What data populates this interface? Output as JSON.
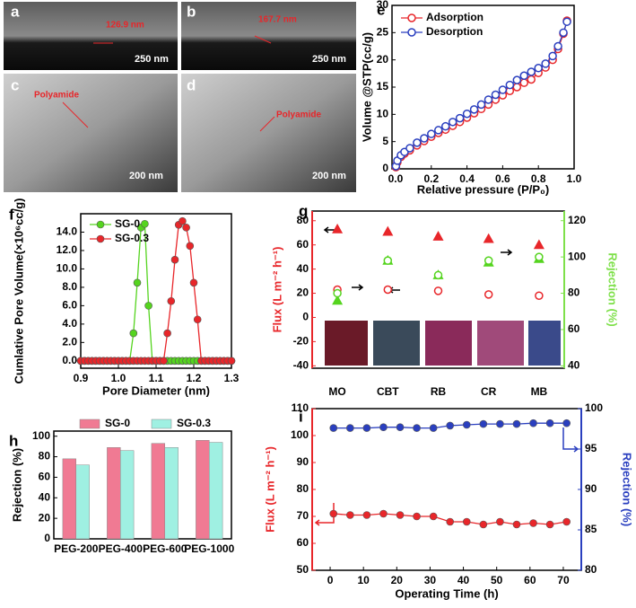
{
  "micrographs": [
    {
      "label": "a",
      "measurement": "126.9 nm",
      "scale_bar": "250 nm"
    },
    {
      "label": "b",
      "measurement": "167.7 nm",
      "scale_bar": "250 nm"
    },
    {
      "label": "c",
      "annotation": "Polyamide",
      "scale_bar": "200 nm"
    },
    {
      "label": "d",
      "annotation": "Polyamide",
      "scale_bar": "200 nm"
    }
  ],
  "chart_data": [
    {
      "type": "line",
      "panel_label": "e",
      "xlabel": "Relative pressure (P/P₀)",
      "ylabel": "Volume @STP(cc/g)",
      "x": [
        0.002,
        0.01,
        0.03,
        0.05,
        0.08,
        0.12,
        0.16,
        0.2,
        0.24,
        0.28,
        0.32,
        0.36,
        0.4,
        0.44,
        0.48,
        0.52,
        0.56,
        0.6,
        0.64,
        0.68,
        0.72,
        0.76,
        0.8,
        0.84,
        0.88,
        0.91,
        0.94,
        0.96
      ],
      "series": [
        {
          "name": "Adsorption",
          "color": "#e8262a",
          "marker": "circle",
          "filled": false,
          "values": [
            0.3,
            1.2,
            2.2,
            2.8,
            3.4,
            4.3,
            5.1,
            5.9,
            6.6,
            7.2,
            7.9,
            8.6,
            9.4,
            10.2,
            11.0,
            11.8,
            12.7,
            13.5,
            14.3,
            15.0,
            15.8,
            16.4,
            17.6,
            18.6,
            20.0,
            22.0,
            24.8,
            27.2
          ]
        },
        {
          "name": "Desorption",
          "color": "#2a3fbf",
          "marker": "circle",
          "filled": false,
          "values": [
            0.5,
            1.5,
            2.5,
            3.1,
            3.8,
            4.8,
            5.6,
            6.4,
            7.1,
            7.8,
            8.6,
            9.3,
            10.1,
            10.9,
            11.8,
            12.7,
            13.6,
            14.5,
            15.4,
            16.3,
            17.1,
            17.8,
            18.5,
            19.3,
            20.7,
            22.5,
            25.0,
            27.0
          ]
        }
      ],
      "xlim": [
        -0.02,
        1.0
      ],
      "ylim": [
        0,
        30
      ],
      "xticks": [
        {
          "value": 0,
          "label": "0.0"
        },
        0.2,
        0.4,
        0.6,
        0.8,
        {
          "value": 1,
          "label": "1.0"
        }
      ],
      "yticks": [
        0,
        5,
        10,
        15,
        20,
        25,
        30
      ],
      "legend": "upper left"
    },
    {
      "type": "line",
      "panel_label": "f",
      "xlabel": "Pore Diameter (nm)",
      "ylabel": "Cumlative Pore Volume(×10⁶cc/g)",
      "x": [
        0.9,
        0.91,
        0.92,
        0.93,
        0.94,
        0.95,
        0.96,
        0.97,
        0.98,
        0.99,
        1.0,
        1.01,
        1.02,
        1.03,
        1.04,
        1.05,
        1.06,
        1.07,
        1.08,
        1.09,
        1.1,
        1.11,
        1.12,
        1.13,
        1.14,
        1.15,
        1.16,
        1.17,
        1.18,
        1.19,
        1.2,
        1.21,
        1.22,
        1.23,
        1.24,
        1.25,
        1.26,
        1.27,
        1.28,
        1.29,
        1.3
      ],
      "series": [
        {
          "name": "SG-0",
          "color": "#55d41f",
          "marker": "circle",
          "filled": true,
          "values": [
            0,
            0,
            0,
            0,
            0,
            0,
            0,
            0,
            0,
            0,
            0,
            0,
            0,
            0,
            3,
            8.5,
            14.5,
            14.9,
            6,
            0,
            0,
            0,
            0,
            0,
            0,
            0,
            0,
            0,
            0,
            0,
            0,
            0,
            0,
            0,
            0,
            0,
            0,
            0,
            0,
            0,
            0
          ]
        },
        {
          "name": "SG-0.3",
          "color": "#e8262a",
          "marker": "circle",
          "filled": true,
          "values": [
            0,
            0,
            0,
            0,
            0,
            0,
            0,
            0,
            0,
            0,
            0,
            0,
            0,
            0,
            0,
            0,
            0,
            0,
            0,
            0,
            0,
            0,
            0,
            3,
            6.5,
            11,
            14.8,
            15.2,
            14.5,
            12.5,
            8.5,
            4.5,
            0,
            0,
            0,
            0,
            0,
            0,
            0,
            0,
            0
          ]
        }
      ],
      "xlim": [
        0.9,
        1.3
      ],
      "ylim": [
        -0.8,
        16
      ],
      "xticks": [
        0.9,
        {
          "value": 1,
          "label": "1.0"
        },
        1.1,
        1.2,
        1.3
      ],
      "yticks": [
        {
          "value": 0,
          "label": "0.0"
        },
        {
          "value": 2,
          "label": "2.0"
        },
        {
          "value": 4,
          "label": "4.0"
        },
        {
          "value": 6,
          "label": "6.0"
        },
        {
          "value": 8,
          "label": "8.0"
        },
        {
          "value": 10,
          "label": "10.0"
        },
        {
          "value": 12,
          "label": "12.0"
        },
        {
          "value": 14,
          "label": "14.0"
        }
      ],
      "legend": "upper left"
    },
    {
      "type": "scatter",
      "panel_label": "g",
      "ylabel": "Flux (L m⁻² h⁻¹)",
      "y2label": "Rejection (%)",
      "y_color": "#e8262a",
      "y2_color": "#7ee04a",
      "categories": [
        "MO",
        "CBT",
        "RB",
        "CR",
        "MB"
      ],
      "series": [
        {
          "color": "#e8262a",
          "marker": "triangle",
          "filled": true,
          "values": [
            73,
            71,
            67,
            65,
            60
          ]
        },
        {
          "color": "#e8262a",
          "marker": "circle",
          "filled": false,
          "values": [
            23,
            23,
            22,
            19,
            18
          ]
        },
        {
          "color": "#55d41f",
          "marker": "triangle",
          "filled": true,
          "axis": "y2",
          "values": [
            76,
            98,
            90,
            97,
            99
          ]
        },
        {
          "color": "#55d41f",
          "marker": "circle",
          "filled": false,
          "axis": "y2",
          "values": [
            80,
            98,
            90,
            98,
            100
          ]
        }
      ],
      "ylim": [
        -42,
        88
      ],
      "yticks": [
        -40,
        -20,
        0,
        20,
        40,
        60,
        80
      ],
      "y2lim": [
        38.7,
        125.3
      ],
      "y2ticks": [
        40,
        60,
        80,
        100,
        120
      ]
    },
    {
      "type": "bar",
      "panel_label": "h",
      "ylabel": "Rejection (%)",
      "categories": [
        "PEG-200",
        "PEG-400",
        "PEG-600",
        "PEG-1000"
      ],
      "series": [
        {
          "name": "SG-0",
          "color": "#f07a93",
          "values": [
            78,
            89,
            93,
            96
          ]
        },
        {
          "name": "SG-0.3",
          "color": "#9ff0e2",
          "values": [
            72,
            86,
            89,
            94
          ]
        }
      ],
      "ylim": [
        0,
        105
      ],
      "yticks": [
        0,
        20,
        40,
        60,
        80,
        100
      ],
      "legend": "upper center"
    },
    {
      "type": "line",
      "panel_label": "i",
      "xlabel": "Operating Time (h)",
      "ylabel": "Flux (L m⁻² h⁻¹)",
      "y2label": "Rejection (%)",
      "y_color": "#e8262a",
      "y2_color": "#2a3fbf",
      "x": [
        1,
        6,
        11,
        16,
        21,
        26,
        31,
        36,
        41,
        46,
        51,
        56,
        61,
        66,
        71
      ],
      "series": [
        {
          "color": "#e8262a",
          "marker": "circle",
          "filled": true,
          "values": [
            71,
            70.5,
            70.5,
            71,
            70.5,
            70,
            70,
            68,
            68,
            67,
            68,
            67,
            67.5,
            67,
            68
          ]
        },
        {
          "color": "#2a3fbf",
          "marker": "circle",
          "filled": true,
          "axis": "y2",
          "values": [
            97.6,
            97.6,
            97.6,
            97.7,
            97.7,
            97.6,
            97.6,
            97.9,
            98.0,
            98.1,
            98.1,
            98.1,
            98.2,
            98.2,
            98.2
          ]
        }
      ],
      "xlim": [
        -5.4,
        75.4
      ],
      "xticks": [
        0,
        10,
        20,
        30,
        40,
        50,
        60,
        70
      ],
      "ylim": [
        50,
        110
      ],
      "yticks": [
        50,
        60,
        70,
        80,
        90,
        100,
        110
      ],
      "y2lim": [
        80,
        100
      ],
      "y2ticks": [
        80,
        85,
        90,
        95,
        100
      ]
    }
  ]
}
